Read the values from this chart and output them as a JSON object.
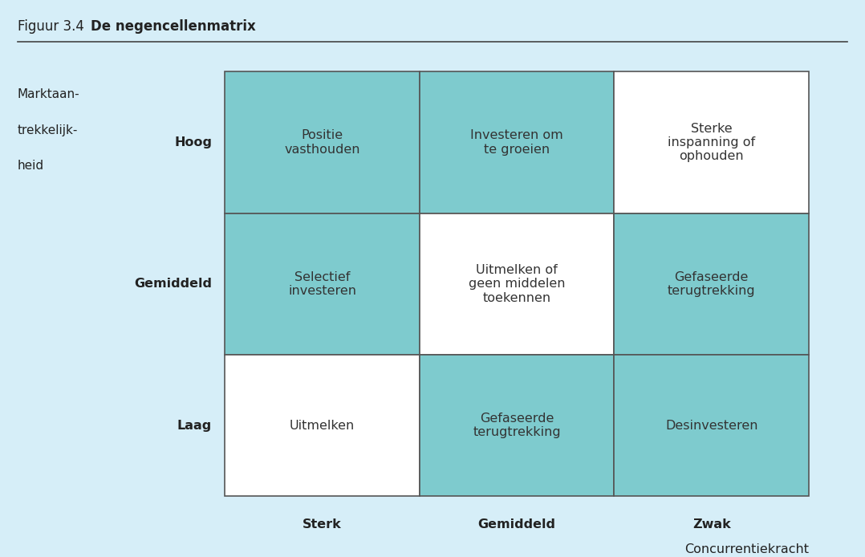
{
  "title": "Figuur 3.4",
  "title_bold": "De negencellenmatrix",
  "background_color": "#d6eef8",
  "cell_color_light": "#7ecbce",
  "cell_color_white": "#ffffff",
  "grid_color": "#555555",
  "row_labels": [
    "Hoog",
    "Gemiddeld",
    "Laag"
  ],
  "col_labels": [
    "Sterk",
    "Gemiddeld",
    "Zwak"
  ],
  "y_axis_label_lines": [
    "Marktaan-",
    "trekkelijk-",
    "heid"
  ],
  "x_axis_label": "Concurrentiekracht",
  "cell_colors": [
    [
      "light",
      "light",
      "white"
    ],
    [
      "light",
      "white",
      "light"
    ],
    [
      "white",
      "light",
      "light"
    ]
  ],
  "cell_texts": [
    [
      "Positie\nvasthouden",
      "Investeren om\nte groeien",
      "Sterke\ninspanning of\nophouden"
    ],
    [
      "Selectief\ninvesteren",
      "Uitmelken of\ngeen middelen\ntoekennen",
      "Gefaseerde\nterugtrekking"
    ],
    [
      "Uitmelken",
      "Gefaseerde\nterugtrekking",
      "Desinvesteren"
    ]
  ],
  "text_color": "#333333",
  "label_color": "#222222",
  "fontsize_cell": 11.5,
  "fontsize_axis_label": 11.5,
  "fontsize_title": 12,
  "fontsize_ylabel": 11
}
